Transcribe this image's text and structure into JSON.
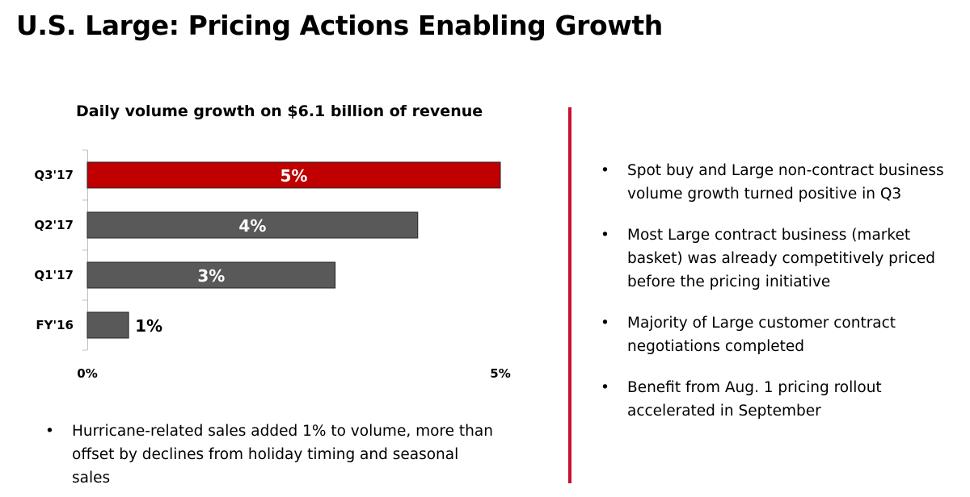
{
  "page": {
    "title": "U.S. Large: Pricing Actions Enabling Growth"
  },
  "chart_data": {
    "type": "bar",
    "orientation": "horizontal",
    "title": "Daily volume growth on $6.1 billion of revenue",
    "categories": [
      "Q3'17",
      "Q2'17",
      "Q1'17",
      "FY'16"
    ],
    "values": [
      5,
      4,
      3,
      0.5
    ],
    "data_labels": [
      "5%",
      "4%",
      "3%",
      "1%"
    ],
    "x_tick_labels": [
      "0%",
      "5%"
    ],
    "xlim": [
      0,
      5
    ],
    "grid": false,
    "colors": [
      "#c00000",
      "#595959",
      "#595959",
      "#595959"
    ],
    "label_colors": [
      "#ffffff",
      "#ffffff",
      "#ffffff",
      "#000000"
    ]
  },
  "bottom_bullets": [
    "Hurricane-related sales added 1% to volume, more than offset by declines from holiday timing and seasonal sales"
  ],
  "right_bullets": [
    "Spot buy and Large non-contract business volume growth turned positive in Q3",
    "Most Large contract business (market basket) was already competitively priced before the pricing initiative",
    "Majority of Large customer contract negotiations completed",
    "Benefit from Aug. 1 pricing rollout accelerated in September"
  ],
  "colors": {
    "divider": "#c8102e"
  }
}
